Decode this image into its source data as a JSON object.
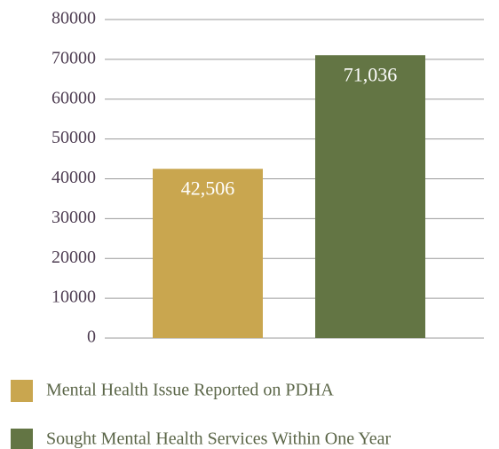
{
  "chart_data": {
    "type": "bar",
    "series": [
      {
        "name": "Mental Health Issue Reported on PDHA",
        "color": "#c9a64f",
        "values": [
          42506
        ],
        "value_labels": [
          "42,506"
        ]
      },
      {
        "name": "Sought Mental Health Services Within One Year",
        "color": "#637544",
        "values": [
          71036
        ],
        "value_labels": [
          "71,036"
        ]
      }
    ],
    "ylim": [
      0,
      80000
    ],
    "yticks": [
      0,
      10000,
      20000,
      30000,
      40000,
      50000,
      60000,
      70000,
      80000
    ],
    "grid": true
  }
}
